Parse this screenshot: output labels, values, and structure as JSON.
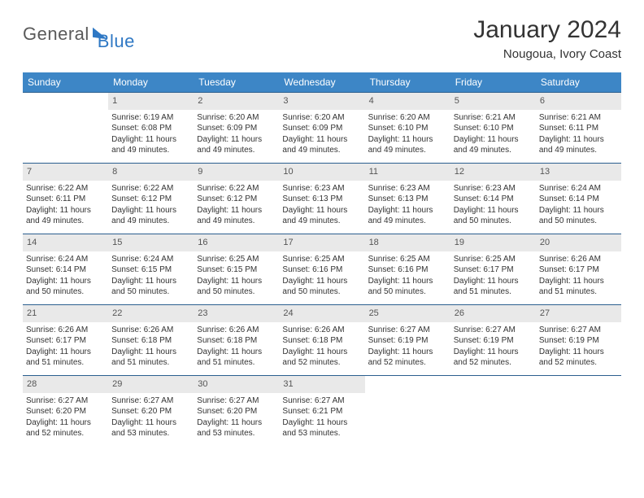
{
  "brand": {
    "part1": "General",
    "part2": "Blue"
  },
  "title": "January 2024",
  "subtitle": "Nougoua, Ivory Coast",
  "colors": {
    "header_bg": "#3d86c6",
    "header_text": "#ffffff",
    "daynum_bg": "#e9e9e9",
    "row_border": "#2b5f8f",
    "text": "#333333",
    "logo_gray": "#5a5a5a",
    "logo_blue": "#2f78c4"
  },
  "columns": [
    "Sunday",
    "Monday",
    "Tuesday",
    "Wednesday",
    "Thursday",
    "Friday",
    "Saturday"
  ],
  "start_offset": 1,
  "days": [
    {
      "n": 1,
      "sr": "6:19 AM",
      "ss": "6:08 PM",
      "dl": "11 hours and 49 minutes."
    },
    {
      "n": 2,
      "sr": "6:20 AM",
      "ss": "6:09 PM",
      "dl": "11 hours and 49 minutes."
    },
    {
      "n": 3,
      "sr": "6:20 AM",
      "ss": "6:09 PM",
      "dl": "11 hours and 49 minutes."
    },
    {
      "n": 4,
      "sr": "6:20 AM",
      "ss": "6:10 PM",
      "dl": "11 hours and 49 minutes."
    },
    {
      "n": 5,
      "sr": "6:21 AM",
      "ss": "6:10 PM",
      "dl": "11 hours and 49 minutes."
    },
    {
      "n": 6,
      "sr": "6:21 AM",
      "ss": "6:11 PM",
      "dl": "11 hours and 49 minutes."
    },
    {
      "n": 7,
      "sr": "6:22 AM",
      "ss": "6:11 PM",
      "dl": "11 hours and 49 minutes."
    },
    {
      "n": 8,
      "sr": "6:22 AM",
      "ss": "6:12 PM",
      "dl": "11 hours and 49 minutes."
    },
    {
      "n": 9,
      "sr": "6:22 AM",
      "ss": "6:12 PM",
      "dl": "11 hours and 49 minutes."
    },
    {
      "n": 10,
      "sr": "6:23 AM",
      "ss": "6:13 PM",
      "dl": "11 hours and 49 minutes."
    },
    {
      "n": 11,
      "sr": "6:23 AM",
      "ss": "6:13 PM",
      "dl": "11 hours and 49 minutes."
    },
    {
      "n": 12,
      "sr": "6:23 AM",
      "ss": "6:14 PM",
      "dl": "11 hours and 50 minutes."
    },
    {
      "n": 13,
      "sr": "6:24 AM",
      "ss": "6:14 PM",
      "dl": "11 hours and 50 minutes."
    },
    {
      "n": 14,
      "sr": "6:24 AM",
      "ss": "6:14 PM",
      "dl": "11 hours and 50 minutes."
    },
    {
      "n": 15,
      "sr": "6:24 AM",
      "ss": "6:15 PM",
      "dl": "11 hours and 50 minutes."
    },
    {
      "n": 16,
      "sr": "6:25 AM",
      "ss": "6:15 PM",
      "dl": "11 hours and 50 minutes."
    },
    {
      "n": 17,
      "sr": "6:25 AM",
      "ss": "6:16 PM",
      "dl": "11 hours and 50 minutes."
    },
    {
      "n": 18,
      "sr": "6:25 AM",
      "ss": "6:16 PM",
      "dl": "11 hours and 50 minutes."
    },
    {
      "n": 19,
      "sr": "6:25 AM",
      "ss": "6:17 PM",
      "dl": "11 hours and 51 minutes."
    },
    {
      "n": 20,
      "sr": "6:26 AM",
      "ss": "6:17 PM",
      "dl": "11 hours and 51 minutes."
    },
    {
      "n": 21,
      "sr": "6:26 AM",
      "ss": "6:17 PM",
      "dl": "11 hours and 51 minutes."
    },
    {
      "n": 22,
      "sr": "6:26 AM",
      "ss": "6:18 PM",
      "dl": "11 hours and 51 minutes."
    },
    {
      "n": 23,
      "sr": "6:26 AM",
      "ss": "6:18 PM",
      "dl": "11 hours and 51 minutes."
    },
    {
      "n": 24,
      "sr": "6:26 AM",
      "ss": "6:18 PM",
      "dl": "11 hours and 52 minutes."
    },
    {
      "n": 25,
      "sr": "6:27 AM",
      "ss": "6:19 PM",
      "dl": "11 hours and 52 minutes."
    },
    {
      "n": 26,
      "sr": "6:27 AM",
      "ss": "6:19 PM",
      "dl": "11 hours and 52 minutes."
    },
    {
      "n": 27,
      "sr": "6:27 AM",
      "ss": "6:19 PM",
      "dl": "11 hours and 52 minutes."
    },
    {
      "n": 28,
      "sr": "6:27 AM",
      "ss": "6:20 PM",
      "dl": "11 hours and 52 minutes."
    },
    {
      "n": 29,
      "sr": "6:27 AM",
      "ss": "6:20 PM",
      "dl": "11 hours and 53 minutes."
    },
    {
      "n": 30,
      "sr": "6:27 AM",
      "ss": "6:20 PM",
      "dl": "11 hours and 53 minutes."
    },
    {
      "n": 31,
      "sr": "6:27 AM",
      "ss": "6:21 PM",
      "dl": "11 hours and 53 minutes."
    }
  ],
  "labels": {
    "sunrise": "Sunrise:",
    "sunset": "Sunset:",
    "daylight": "Daylight:"
  }
}
